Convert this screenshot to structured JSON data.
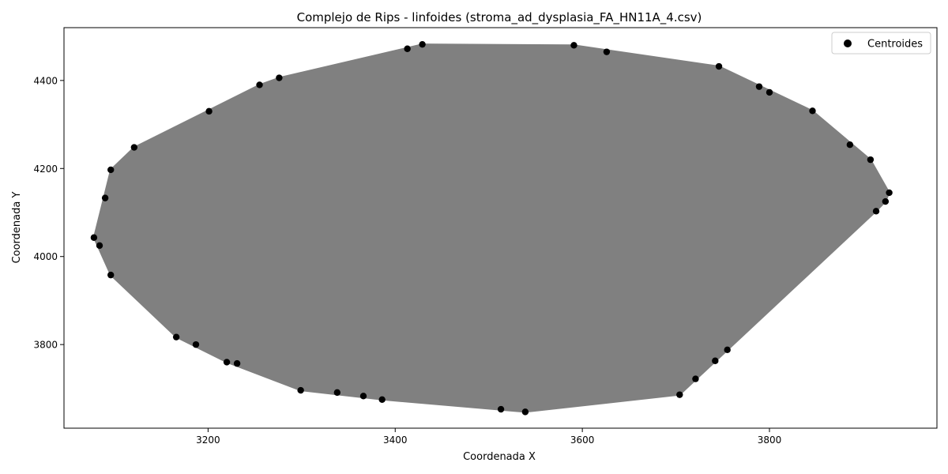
{
  "chart_data": {
    "type": "scatter",
    "title": "Complejo de Rips - linfoides (stroma_ad_dysplasia_FA_HN11A_4.csv)",
    "xlabel": "Coordenada X",
    "ylabel": "Coordenada Y",
    "xlim": [
      3046,
      3979
    ],
    "ylim": [
      3610,
      4520
    ],
    "xticks": [
      3200,
      3400,
      3600,
      3800
    ],
    "yticks": [
      3800,
      4000,
      4200,
      4400
    ],
    "grid": false,
    "legend_position": "top-right",
    "series": [
      {
        "name": "Centroides",
        "color": "#000000",
        "edge_color": "#808080",
        "points": [
          [
            3078,
            4043
          ],
          [
            3084,
            4025
          ],
          [
            3096,
            3958
          ],
          [
            3096,
            4197
          ],
          [
            3090,
            4133
          ],
          [
            3121,
            4248
          ],
          [
            3166,
            3817
          ],
          [
            3187,
            3800
          ],
          [
            3201,
            4330
          ],
          [
            3220,
            3760
          ],
          [
            3231,
            3757
          ],
          [
            3255,
            4390
          ],
          [
            3276,
            4406
          ],
          [
            3299,
            3696
          ],
          [
            3338,
            3691
          ],
          [
            3366,
            3683
          ],
          [
            3386,
            3675
          ],
          [
            3413,
            4472
          ],
          [
            3429,
            4482
          ],
          [
            3513,
            3653
          ],
          [
            3539,
            3647
          ],
          [
            3591,
            4480
          ],
          [
            3626,
            4465
          ],
          [
            3704,
            3686
          ],
          [
            3721,
            3722
          ],
          [
            3742,
            3763
          ],
          [
            3746,
            4432
          ],
          [
            3755,
            3788
          ],
          [
            3789,
            4386
          ],
          [
            3800,
            4373
          ],
          [
            3846,
            4331
          ],
          [
            3886,
            4254
          ],
          [
            3908,
            4220
          ],
          [
            3914,
            4103
          ],
          [
            3924,
            4125
          ],
          [
            3928,
            4145
          ]
        ]
      }
    ]
  }
}
